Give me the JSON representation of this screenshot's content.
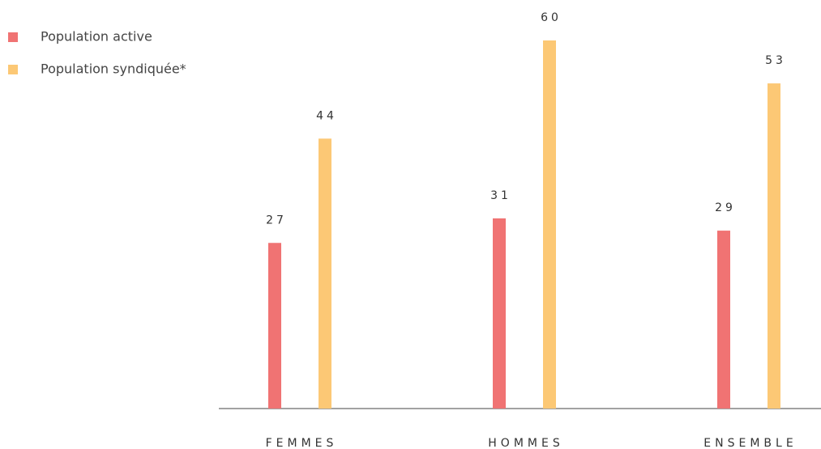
{
  "chart_data": {
    "type": "bar",
    "categories": [
      "FEMMES",
      "HOMMES",
      "ENSEMBLE"
    ],
    "series": [
      {
        "name": "Population active",
        "color": "#f07373",
        "values": [
          27,
          31,
          29
        ]
      },
      {
        "name": "Population syndiquée*",
        "color": "#fcc875",
        "values": [
          44,
          60,
          53
        ]
      }
    ],
    "ylim": [
      0,
      60
    ]
  }
}
